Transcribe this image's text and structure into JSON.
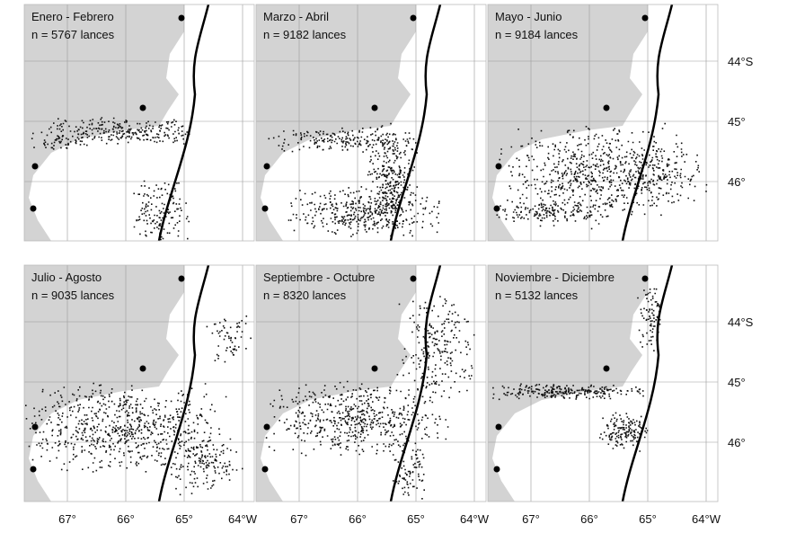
{
  "panels": [
    {
      "title": "Enero - Febrero",
      "n_label": "n = 5767 lances"
    },
    {
      "title": "Marzo - Abril",
      "n_label": "n = 9182 lances"
    },
    {
      "title": "Mayo - Junio",
      "n_label": "n = 9184 lances"
    },
    {
      "title": "Julio - Agosto",
      "n_label": "n = 9035 lances"
    },
    {
      "title": "Septiembre - Octubre",
      "n_label": "n = 8320 lances"
    },
    {
      "title": "Noviembre - Diciembre",
      "n_label": "n = 5132 lances"
    }
  ],
  "longitude_labels": [
    "67°",
    "66°",
    "65°",
    "64°W"
  ],
  "latitude_labels": [
    "44°S",
    "45°",
    "46°"
  ]
}
